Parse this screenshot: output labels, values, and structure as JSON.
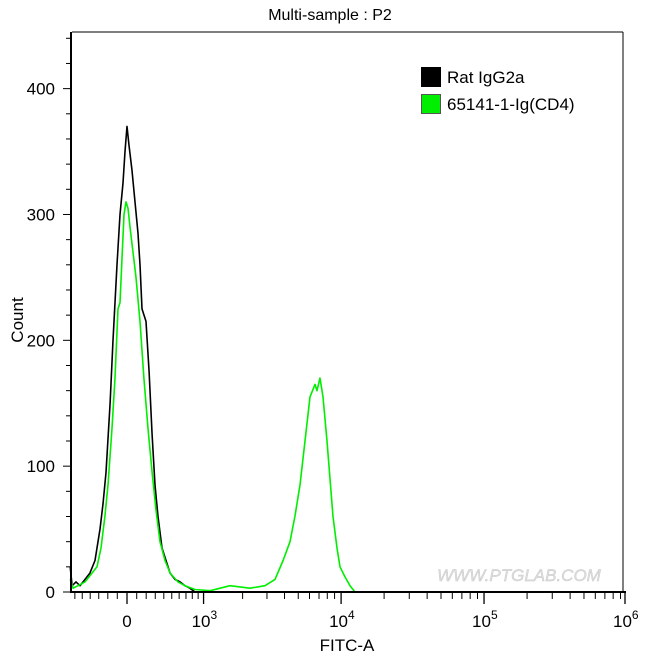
{
  "chart_data": {
    "type": "line",
    "title": "Multi-sample : P2",
    "xlabel": "FITC-A",
    "ylabel": "Count",
    "x_scale": "biexponential",
    "xlim": [
      -668,
      1000000
    ],
    "ylim": [
      0,
      445
    ],
    "x_ticks": [
      {
        "value": 0,
        "label": "0",
        "exp": ""
      },
      {
        "value": 1000,
        "label": "10",
        "exp": "3"
      },
      {
        "value": 10000,
        "label": "10",
        "exp": "4"
      },
      {
        "value": 100000,
        "label": "10",
        "exp": "5"
      },
      {
        "value": 1000000,
        "label": "10",
        "exp": "6"
      }
    ],
    "y_ticks": [
      {
        "value": 0,
        "label": "0"
      },
      {
        "value": 100,
        "label": "100"
      },
      {
        "value": 200,
        "label": "200"
      },
      {
        "value": 300,
        "label": "300"
      },
      {
        "value": 400,
        "label": "400"
      }
    ],
    "grid": false,
    "legend_position": "top-right",
    "watermark": "WWW.PTGLAB.COM",
    "series": [
      {
        "name": "Rat IgG2a",
        "color": "#000000",
        "points": [
          [
            -668,
            20
          ],
          [
            -639,
            5
          ],
          [
            -584,
            8
          ],
          [
            -530,
            5
          ],
          [
            -465,
            10
          ],
          [
            -403,
            15
          ],
          [
            -343,
            25
          ],
          [
            -286,
            50
          ],
          [
            -252,
            70
          ],
          [
            -219,
            95
          ],
          [
            -176,
            150
          ],
          [
            -145,
            200
          ],
          [
            -103,
            260
          ],
          [
            -72,
            300
          ],
          [
            -41,
            325
          ],
          [
            -21,
            350
          ],
          [
            0,
            370
          ],
          [
            21,
            355
          ],
          [
            51,
            335
          ],
          [
            82,
            310
          ],
          [
            113,
            285
          ],
          [
            134,
            260
          ],
          [
            155,
            225
          ],
          [
            198,
            215
          ],
          [
            231,
            175
          ],
          [
            264,
            125
          ],
          [
            297,
            85
          ],
          [
            331,
            60
          ],
          [
            378,
            35
          ],
          [
            427,
            25
          ],
          [
            478,
            15
          ],
          [
            543,
            10
          ],
          [
            612,
            8
          ],
          [
            685,
            5
          ],
          [
            762,
            3
          ],
          [
            846,
            0
          ]
        ]
      },
      {
        "name": "65141-1-Ig(CD4)",
        "color": "#00ee00",
        "points": [
          [
            -668,
            10
          ],
          [
            -625,
            3
          ],
          [
            -557,
            5
          ],
          [
            -465,
            8
          ],
          [
            -378,
            15
          ],
          [
            -320,
            20
          ],
          [
            -275,
            35
          ],
          [
            -231,
            60
          ],
          [
            -198,
            85
          ],
          [
            -155,
            130
          ],
          [
            -124,
            170
          ],
          [
            -93,
            225
          ],
          [
            -72,
            230
          ],
          [
            -51,
            265
          ],
          [
            -31,
            300
          ],
          [
            -10,
            310
          ],
          [
            10,
            305
          ],
          [
            31,
            290
          ],
          [
            62,
            270
          ],
          [
            93,
            250
          ],
          [
            134,
            215
          ],
          [
            176,
            170
          ],
          [
            219,
            130
          ],
          [
            264,
            95
          ],
          [
            308,
            65
          ],
          [
            355,
            40
          ],
          [
            415,
            25
          ],
          [
            478,
            15
          ],
          [
            584,
            8
          ],
          [
            685,
            5
          ],
          [
            846,
            2
          ],
          [
            1133,
            1
          ],
          [
            1612,
            5
          ],
          [
            2261,
            3
          ],
          [
            2905,
            5
          ],
          [
            3421,
            10
          ],
          [
            3905,
            25
          ],
          [
            4370,
            40
          ],
          [
            4739,
            60
          ],
          [
            5147,
            85
          ],
          [
            5580,
            120
          ],
          [
            6052,
            155
          ],
          [
            6561,
            165
          ],
          [
            6778,
            160
          ],
          [
            7115,
            170
          ],
          [
            7466,
            155
          ],
          [
            7963,
            120
          ],
          [
            8357,
            90
          ],
          [
            8771,
            60
          ],
          [
            9364,
            35
          ],
          [
            9829,
            20
          ],
          [
            10651,
            12
          ],
          [
            11542,
            5
          ],
          [
            12504,
            0
          ]
        ]
      }
    ]
  }
}
